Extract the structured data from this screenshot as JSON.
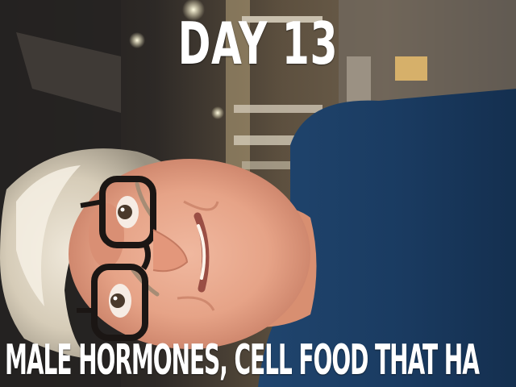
{
  "image": {
    "title": "DAY 13",
    "subtitle": "MALE HORMONES, CELL FOOD THAT HA"
  }
}
